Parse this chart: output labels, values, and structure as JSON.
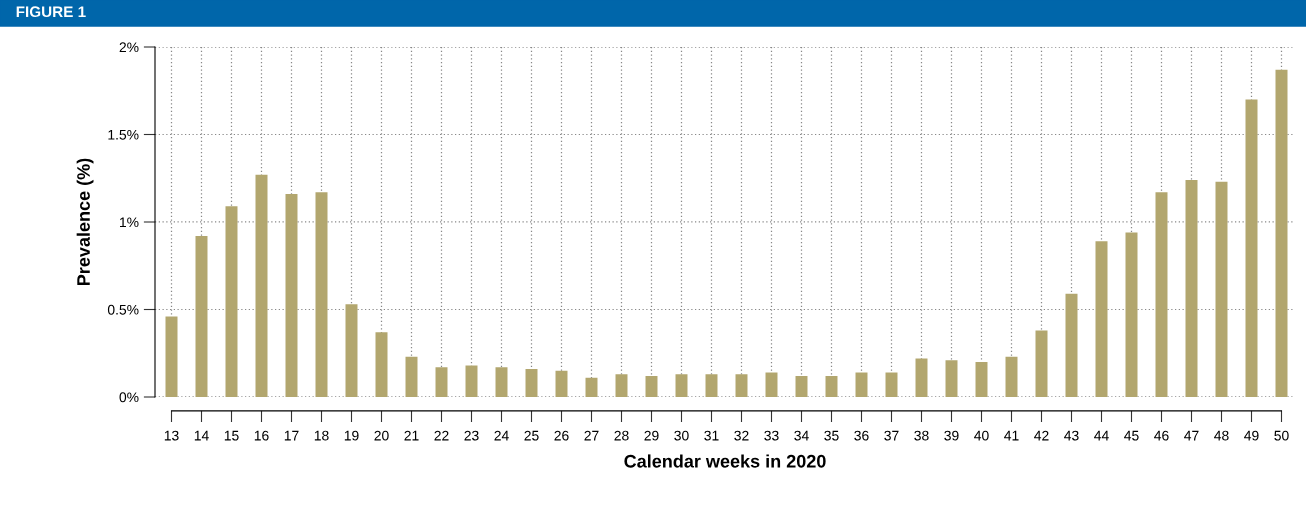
{
  "chart_data": {
    "type": "bar",
    "title": "FIGURE 1",
    "xlabel": "Calendar weeks in 2020",
    "ylabel": "Prevalence (%)",
    "categories": [
      "13",
      "14",
      "15",
      "16",
      "17",
      "18",
      "19",
      "20",
      "21",
      "22",
      "23",
      "24",
      "25",
      "26",
      "27",
      "28",
      "29",
      "30",
      "31",
      "32",
      "33",
      "34",
      "35",
      "36",
      "37",
      "38",
      "39",
      "40",
      "41",
      "42",
      "43",
      "44",
      "45",
      "46",
      "47",
      "48",
      "49",
      "50"
    ],
    "values": [
      0.46,
      0.92,
      1.09,
      1.27,
      1.16,
      1.17,
      0.53,
      0.37,
      0.23,
      0.17,
      0.18,
      0.17,
      0.16,
      0.15,
      0.11,
      0.13,
      0.12,
      0.13,
      0.13,
      0.13,
      0.14,
      0.12,
      0.12,
      0.14,
      0.14,
      0.22,
      0.21,
      0.2,
      0.23,
      0.38,
      0.59,
      0.89,
      0.94,
      1.17,
      1.24,
      1.23,
      1.7,
      1.87
    ],
    "color": "#b2a66e",
    "ylim": [
      0,
      2
    ],
    "yticks": [
      {
        "value": 0,
        "label": "0%"
      },
      {
        "value": 0.5,
        "label": "0.5%"
      },
      {
        "value": 1,
        "label": "1%"
      },
      {
        "value": 1.5,
        "label": "1.5%"
      },
      {
        "value": 2,
        "label": "2%"
      }
    ],
    "grid": true
  }
}
